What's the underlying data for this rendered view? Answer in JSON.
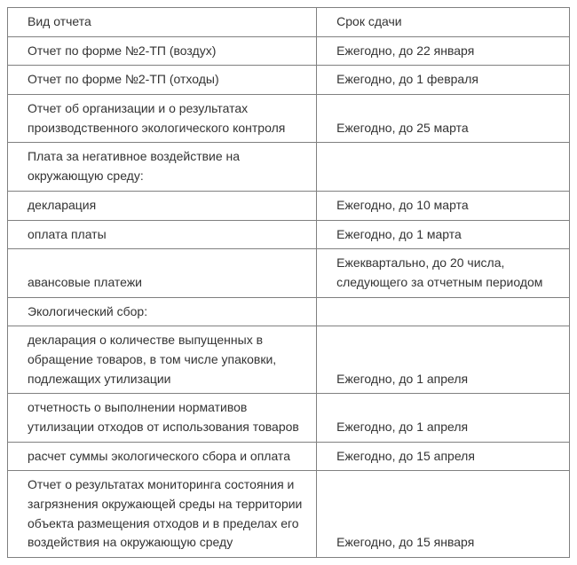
{
  "table": {
    "columns": [
      "Вид отчета",
      "Срок сдачи"
    ],
    "rows": [
      {
        "left": "Отчет по форме №2-ТП (воздух)",
        "right": "Ежегодно, до 22 января",
        "leftIndent": true,
        "rightIndent": true
      },
      {
        "left": "Отчет по форме №2-ТП (отходы)",
        "right": "Ежегодно, до 1 февраля",
        "leftIndent": true,
        "rightIndent": true
      },
      {
        "left": "Отчет об организации и о результатах производственного экологического контроля",
        "right": "Ежегодно, до 25 марта",
        "leftIndent": true,
        "rightIndent": true
      },
      {
        "left": "Плата за негативное воздействие на окружающую среду:",
        "right": "",
        "leftIndent": true,
        "rightIndent": false
      },
      {
        "left": "декларация",
        "right": "Ежегодно, до 10 марта",
        "leftIndent": true,
        "rightIndent": true
      },
      {
        "left": "оплата платы",
        "right": "Ежегодно, до 1 марта",
        "leftIndent": true,
        "rightIndent": true
      },
      {
        "left": "авансовые платежи",
        "right": "Ежеквартально, до 20 числа, следующего за отчетным периодом",
        "leftIndent": true,
        "rightIndent": true
      },
      {
        "left": "Экологический сбор:",
        "right": "",
        "leftIndent": true,
        "rightIndent": false
      },
      {
        "left": "декларация о количестве выпущенных в обращение товаров, в том числе упаковки, подлежащих утилизации",
        "right": "Ежегодно, до 1 апреля",
        "leftIndent": true,
        "rightIndent": true
      },
      {
        "left": "отчетность о выполнении нормативов утилизации отходов от использования товаров",
        "right": "Ежегодно, до 1 апреля",
        "leftIndent": true,
        "rightIndent": true
      },
      {
        "left": "расчет суммы экологического сбора и оплата",
        "right": "Ежегодно, до 15 апреля",
        "leftIndent": true,
        "rightIndent": true
      },
      {
        "left": "Отчет о результатах мониторинга состояния и загрязнения окружающей среды на территории объекта размещения отходов и в пределах его воздействия на окружающую среду",
        "right": "Ежегодно, до 15 января",
        "leftIndent": true,
        "rightIndent": true
      }
    ],
    "border_color": "#808080",
    "text_color": "#333333",
    "background_color": "#ffffff",
    "font_size": 14,
    "col_left_width": "55%",
    "col_right_width": "45%"
  }
}
